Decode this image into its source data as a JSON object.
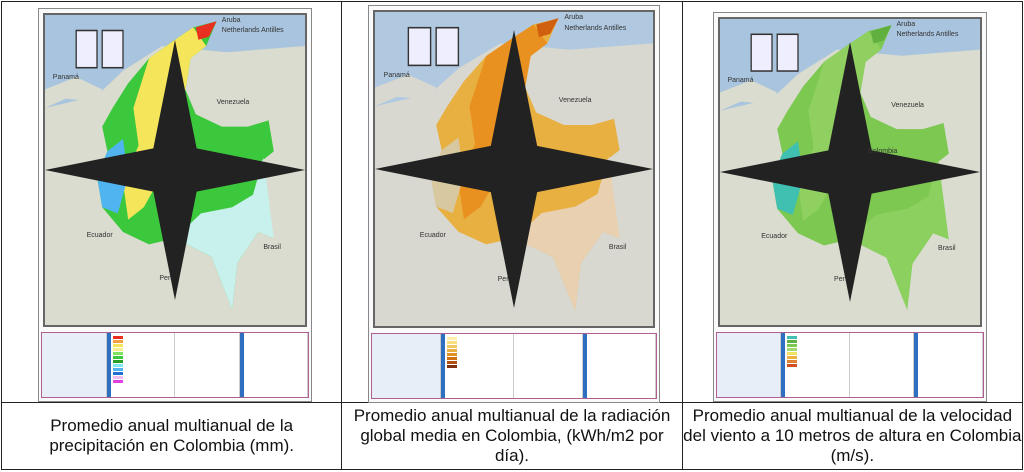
{
  "captions": [
    "Promedio anual multianual de la precipitación en Colombia (mm).",
    "Promedio anual multianual de la radiación global media en Colombia, (kWh/m2 por día).",
    "Promedio anual multianual de la velocidad del viento a 10 metros de altura en Colombia (m/s)."
  ],
  "map_labels": {
    "panama": "Panamá",
    "venezuela": "Venezuela",
    "ecuador": "Ecuador",
    "peru": "Perú",
    "brasil": "Brasil",
    "aruba": "Aruba",
    "antilles": "Netherlands Antilles",
    "colombia": "Colombia"
  },
  "maps": [
    {
      "theme": "precipitation",
      "colors": {
        "sea": "#a9c4de",
        "land": "#d9dccf",
        "main": "#3cc83c",
        "north": "#f4e55a",
        "west": "#4fb4f0",
        "south": "#c8f0ec",
        "tip": "#e83020"
      },
      "legend": [
        "#e83020",
        "#f4a040",
        "#f4e55a",
        "#f8f08a",
        "#80e060",
        "#3cc83c",
        "#28a028",
        "#80e8f0",
        "#4fb4f0",
        "#2070d0",
        "#f0c0f0",
        "#e040e0"
      ]
    },
    {
      "theme": "radiation",
      "colors": {
        "sea": "#b0c8e0",
        "land": "#d8d8d0",
        "main": "#e8b040",
        "north": "#e89020",
        "west": "#d8c8a0",
        "south": "#e8d0b0",
        "tip": "#d06010"
      },
      "legend": [
        "#fff0b0",
        "#f8e080",
        "#f0c860",
        "#e8b040",
        "#e09020",
        "#d07010",
        "#b05010",
        "#803010"
      ]
    },
    {
      "theme": "wind",
      "colors": {
        "sea": "#a9c4de",
        "land": "#d9dccf",
        "main": "#7cc850",
        "north": "#90d060",
        "west": "#40c0b0",
        "south": "#8cd060",
        "tip": "#60b040"
      },
      "legend": [
        "#40c0b0",
        "#60b040",
        "#7cc850",
        "#a0d870",
        "#f0e060",
        "#f0b040",
        "#e08030",
        "#d05020"
      ]
    }
  ]
}
